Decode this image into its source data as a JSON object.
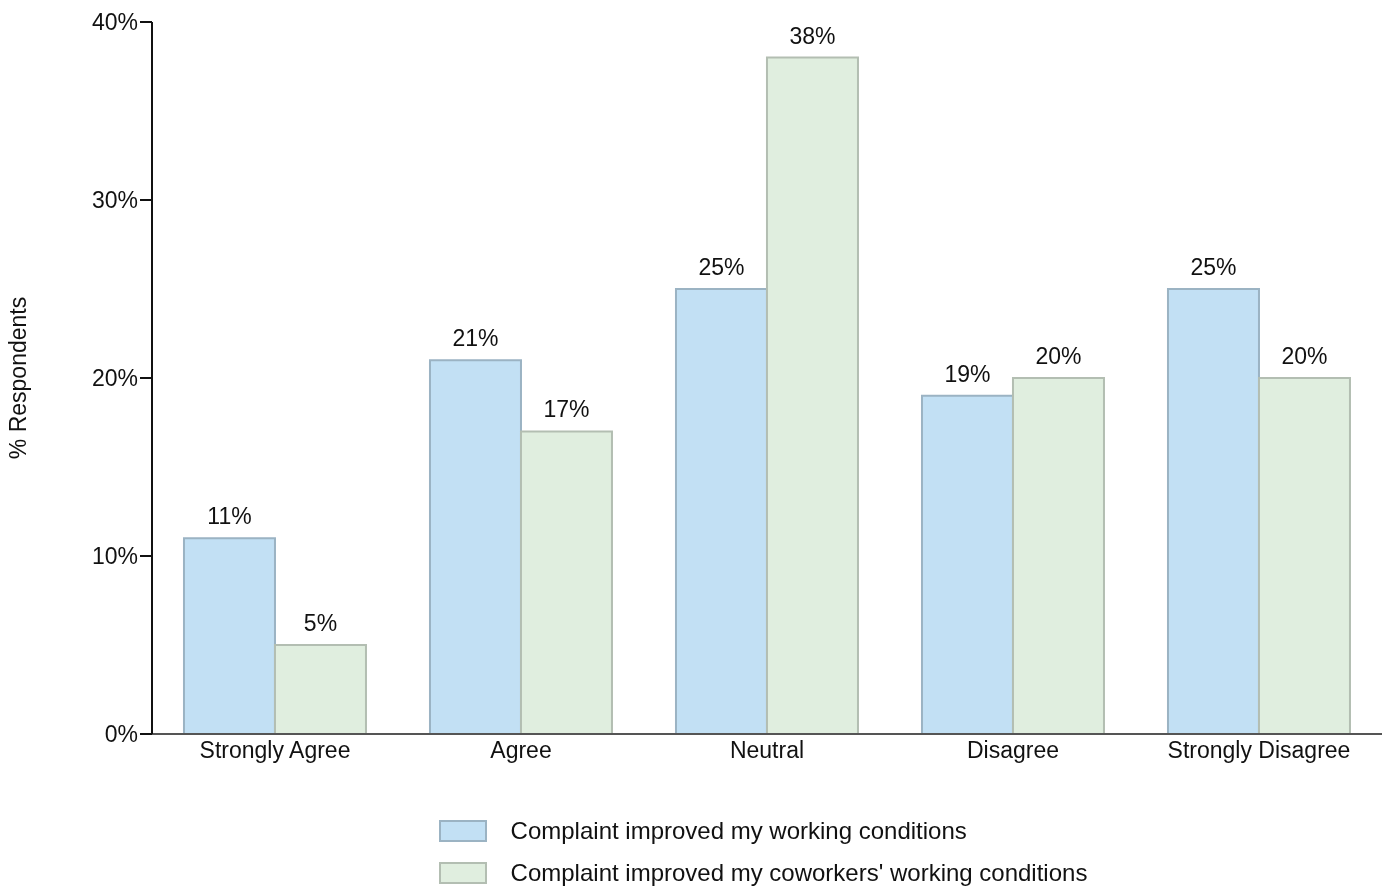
{
  "chart_data": {
    "type": "bar",
    "ylabel": "% Respondents",
    "categories": [
      "Strongly Agree",
      "Agree",
      "Neutral",
      "Disagree",
      "Strongly Disagree"
    ],
    "series": [
      {
        "name": "Complaint improved my working conditions",
        "color": "#c2e0f4",
        "values": [
          11,
          21,
          25,
          19,
          25
        ],
        "value_labels": [
          "11%",
          "21%",
          "25%",
          "19%",
          "25%"
        ]
      },
      {
        "name": "Complaint improved my coworkers' working conditions",
        "color": "#e0eedf",
        "values": [
          5,
          17,
          38,
          20,
          20
        ],
        "value_labels": [
          "5%",
          "17%",
          "38%",
          "20%",
          "20%"
        ]
      }
    ],
    "ylim": [
      0,
      40
    ],
    "yticks": [
      {
        "value": 0,
        "label": "0%"
      },
      {
        "value": 10,
        "label": "10%"
      },
      {
        "value": 20,
        "label": "20%"
      },
      {
        "value": 30,
        "label": "30%"
      },
      {
        "value": 40,
        "label": "40%"
      }
    ],
    "grid": false,
    "legend": "bottom"
  }
}
